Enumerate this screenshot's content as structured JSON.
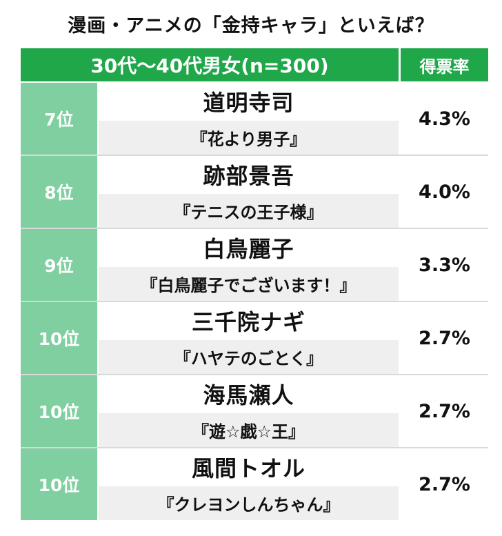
{
  "title": "漫画・アニメの「金持キャラ」といえば？",
  "header": {
    "group": "30代〜40代男女(n=300)",
    "rate": "得票率"
  },
  "chart_data": {
    "type": "table",
    "title": "漫画・アニメの「金持キャラ」といえば？",
    "columns": [
      "30代〜40代男女(n=300)",
      "得票率"
    ],
    "rows": [
      {
        "rank": "7位",
        "name": "道明寺司",
        "work": "『花より男子』",
        "rate": "4.3%",
        "value": 4.3
      },
      {
        "rank": "8位",
        "name": "跡部景吾",
        "work": "『テニスの王子様』",
        "rate": "4.0%",
        "value": 4.0
      },
      {
        "rank": "9位",
        "name": "白鳥麗子",
        "work": "『白鳥麗子でございます！』",
        "rate": "3.3%",
        "value": 3.3
      },
      {
        "rank": "10位",
        "name": "三千院ナギ",
        "work": "『ハヤテのごとく』",
        "rate": "2.7%",
        "value": 2.7
      },
      {
        "rank": "10位",
        "name": "海馬瀬人",
        "work": "『遊☆戯☆王』",
        "rate": "2.7%",
        "value": 2.7
      },
      {
        "rank": "10位",
        "name": "風間トオル",
        "work": "『クレヨンしんちゃん』",
        "rate": "2.7%",
        "value": 2.7
      }
    ]
  },
  "colors": {
    "header_green": "#1fa74a",
    "rank_green": "#7fcfa0",
    "work_bg": "#efefef"
  }
}
